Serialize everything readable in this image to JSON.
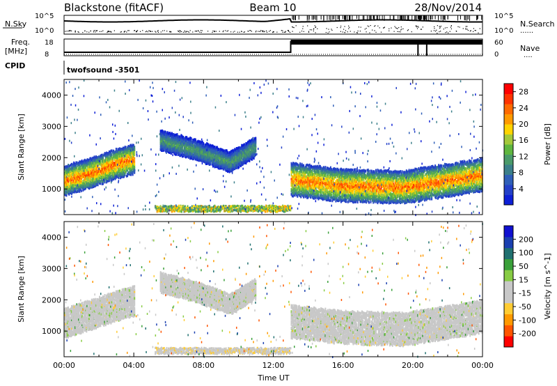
{
  "header": {
    "station": "Blackstone (fitACF)",
    "beam": "Beam 10",
    "date": "28/Nov/2014"
  },
  "status_panels": {
    "nsky_label": "N.Sky",
    "nsearch_label": "N.Search",
    "freq_label": "Freq.",
    "freq_unit": "[MHz]",
    "nave_label": "Nave",
    "cpid_label": "CPID",
    "cpid_value": "twofsound -3501",
    "nsky_ticks": [
      "10^5",
      "10^0"
    ],
    "nsearch_ticks": [
      "10^5",
      "10^0"
    ],
    "freq_ticks": [
      "18",
      "8"
    ],
    "nave_ticks": [
      "60",
      "0"
    ],
    "dotted_legend": "......"
  },
  "colors": {
    "power_scale": [
      "#0d1fd6",
      "#2340c8",
      "#2f5fb8",
      "#3b7f8a",
      "#4a9a6a",
      "#5fb63f",
      "#a4c93a",
      "#ffd400",
      "#ff9a00",
      "#ff6a00",
      "#ff3300",
      "#ff0000"
    ],
    "velocity_scale": [
      "#ff0000",
      "#ff5500",
      "#ff9900",
      "#ffcc33",
      "#c8c8c8",
      "#c8c8c8",
      "#88cc44",
      "#3aa03a",
      "#207070",
      "#1a3fb0",
      "#1010d0"
    ]
  },
  "chart_data": [
    {
      "type": "heatmap",
      "panel": "power",
      "xlabel": "Time UT",
      "ylabel": "Slant Range [km]",
      "xlim": [
        "00:00",
        "24:00"
      ],
      "ylim": [
        180,
        4500
      ],
      "x_ticks": [
        "00:00",
        "04:00",
        "08:00",
        "12:00",
        "16:00",
        "20:00",
        "00:00"
      ],
      "y_ticks": [
        1000,
        2000,
        3000,
        4000
      ],
      "colorbar_label": "Power [dB]",
      "colorbar_ticks": [
        4,
        8,
        12,
        16,
        20,
        24,
        28
      ],
      "colorbar_range": [
        0,
        30
      ],
      "bands": [
        {
          "t": [
            0,
            1.5,
            3.0,
            4.0
          ],
          "range_center_km": [
            1300,
            1550,
            1850,
            2000
          ],
          "width_km": 900,
          "peak_db": 28
        },
        {
          "t": [
            5.5,
            7.5,
            9.5,
            11.0
          ],
          "range_center_km": [
            2600,
            2300,
            1900,
            2400
          ],
          "width_km": 600,
          "peak_db": 14
        },
        {
          "t": [
            13.0,
            16.0,
            19.5,
            24.0
          ],
          "range_center_km": [
            1350,
            1150,
            1100,
            1500
          ],
          "width_km": 1000,
          "peak_db": 28
        }
      ],
      "ground_echo_band": {
        "t": [
          5.2,
          13.0
        ],
        "range_km": [
          300,
          500
        ],
        "peak_db": 20
      }
    },
    {
      "type": "heatmap",
      "panel": "velocity",
      "xlabel": "Time UT",
      "ylabel": "Slant Range [km]",
      "xlim": [
        "00:00",
        "24:00"
      ],
      "ylim": [
        180,
        4500
      ],
      "x_ticks": [
        "00:00",
        "04:00",
        "08:00",
        "12:00",
        "16:00",
        "20:00",
        "00:00"
      ],
      "y_ticks": [
        1000,
        2000,
        3000,
        4000
      ],
      "colorbar_label": "Velocity [m s^-1]",
      "colorbar_ticks": [
        200,
        100,
        50,
        15,
        -15,
        -50,
        -100,
        -200
      ],
      "colorbar_range": [
        -250,
        250
      ]
    }
  ],
  "time_axis_label": "Time UT"
}
